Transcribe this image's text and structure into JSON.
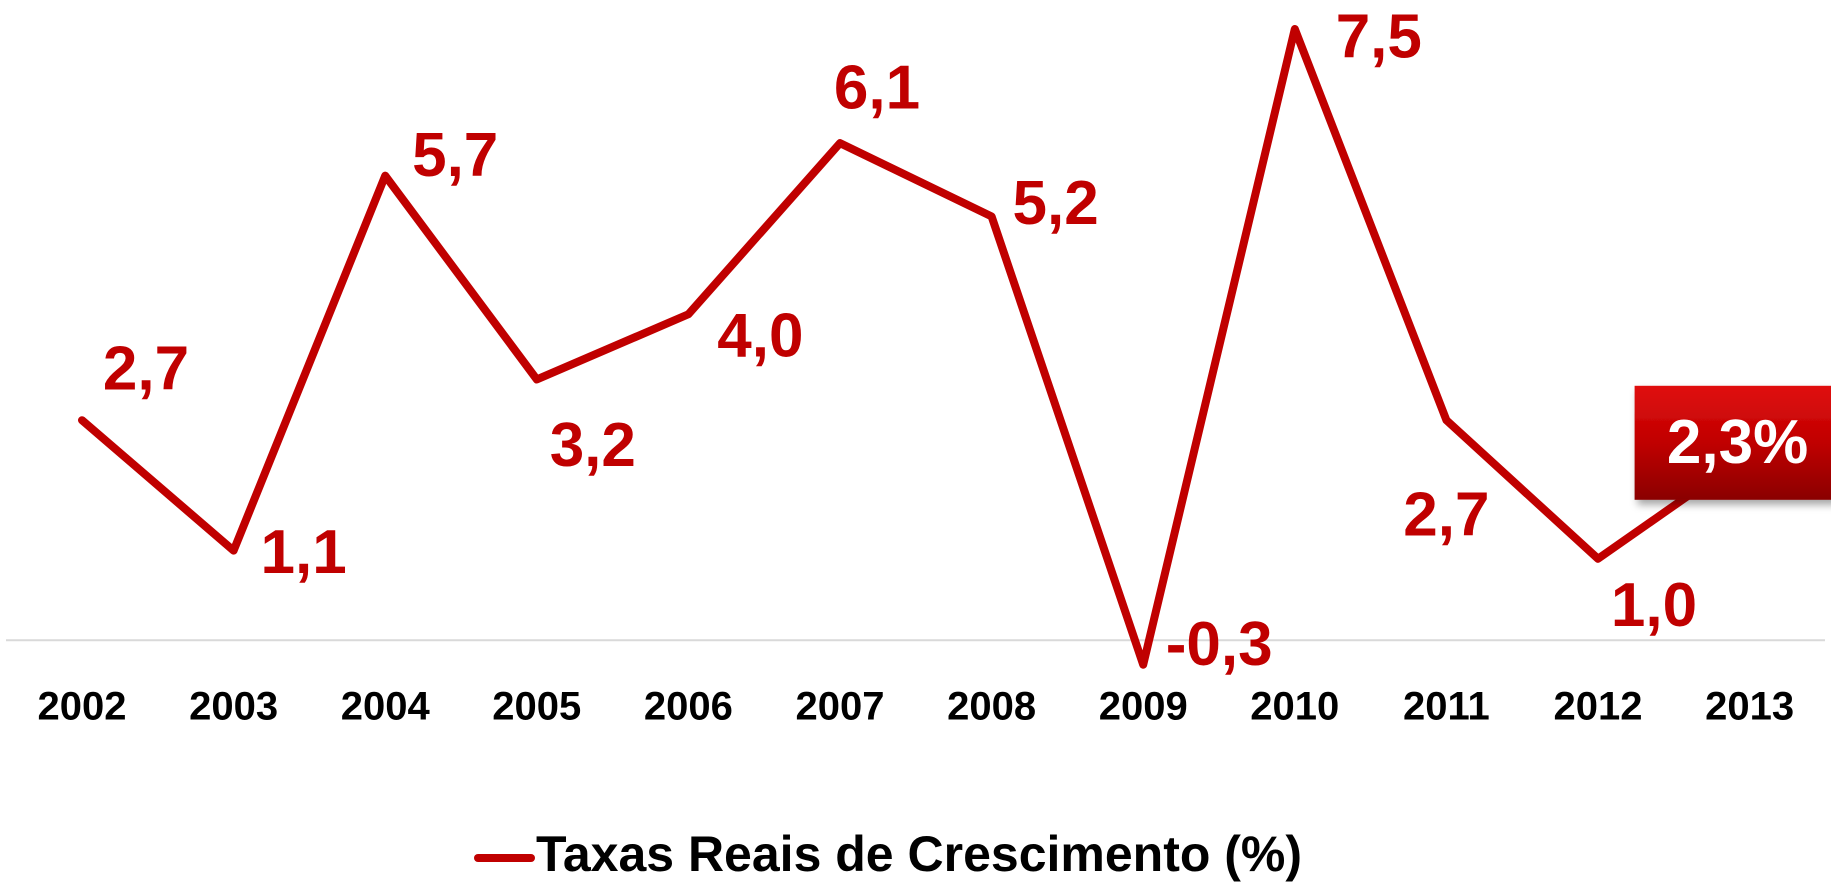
{
  "chart_data": {
    "type": "line",
    "categories": [
      "2002",
      "2003",
      "2004",
      "2005",
      "2006",
      "2007",
      "2008",
      "2009",
      "2010",
      "2011",
      "2012",
      "2013"
    ],
    "series": [
      {
        "name": "Taxas Reais de Crescimento (%)",
        "color": "#c00000",
        "values": [
          2.7,
          1.1,
          5.7,
          3.2,
          4.0,
          6.1,
          5.2,
          -0.3,
          7.5,
          2.7,
          1.0,
          2.3
        ],
        "value_labels": [
          "2,7",
          "1,1",
          "5,7",
          "3,2",
          "4,0",
          "6,1",
          "5,2",
          "-0,3",
          "7,5",
          "2,7",
          "1,0",
          "2,3%"
        ]
      }
    ],
    "ylim": [
      -0.5,
      7.5
    ],
    "legend": "bottom"
  }
}
